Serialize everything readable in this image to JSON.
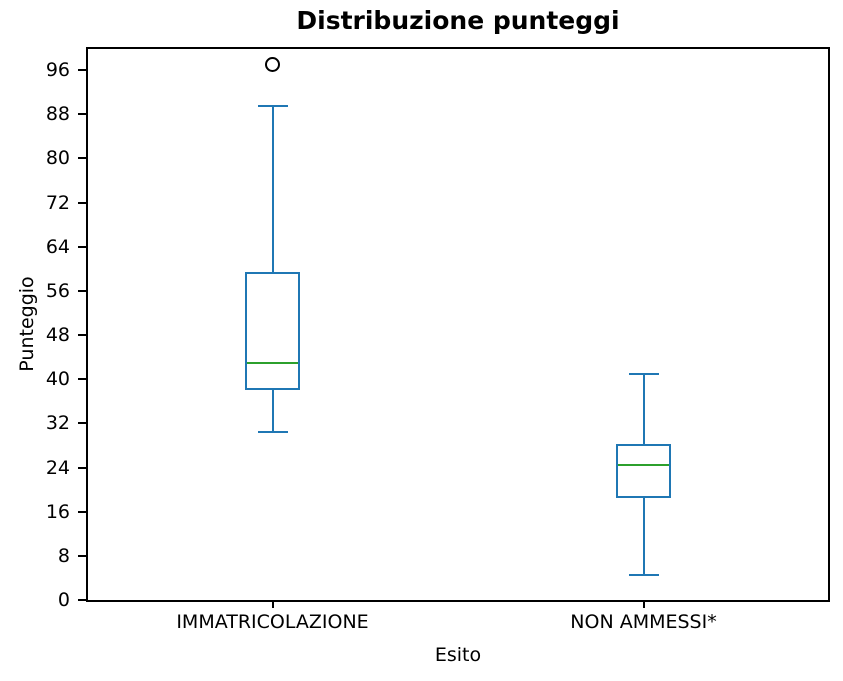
{
  "chart_data": {
    "type": "boxplot",
    "title": "Distribuzione punteggi",
    "xlabel": "Esito",
    "ylabel": "Punteggio",
    "ylim": [
      0,
      100
    ],
    "yticks": [
      0,
      8,
      16,
      24,
      32,
      40,
      48,
      56,
      64,
      72,
      80,
      88,
      96
    ],
    "categories": [
      "IMMATRICOLAZIONE",
      "NON AMMESSI*"
    ],
    "boxes": [
      {
        "label": "IMMATRICOLAZIONE",
        "whislo": 30.5,
        "q1": 38,
        "med": 43,
        "q3": 59.5,
        "whishi": 89.5,
        "fliers": [
          97
        ]
      },
      {
        "label": "NON AMMESSI*",
        "whislo": 4.5,
        "q1": 18.4,
        "med": 24.5,
        "q3": 28.2,
        "whishi": 41,
        "fliers": []
      }
    ],
    "grid": false,
    "legend": null,
    "colors": {
      "box": "#1f77b4",
      "median": "#2ca02c",
      "flier": "#000000",
      "axis": "#000000"
    }
  }
}
